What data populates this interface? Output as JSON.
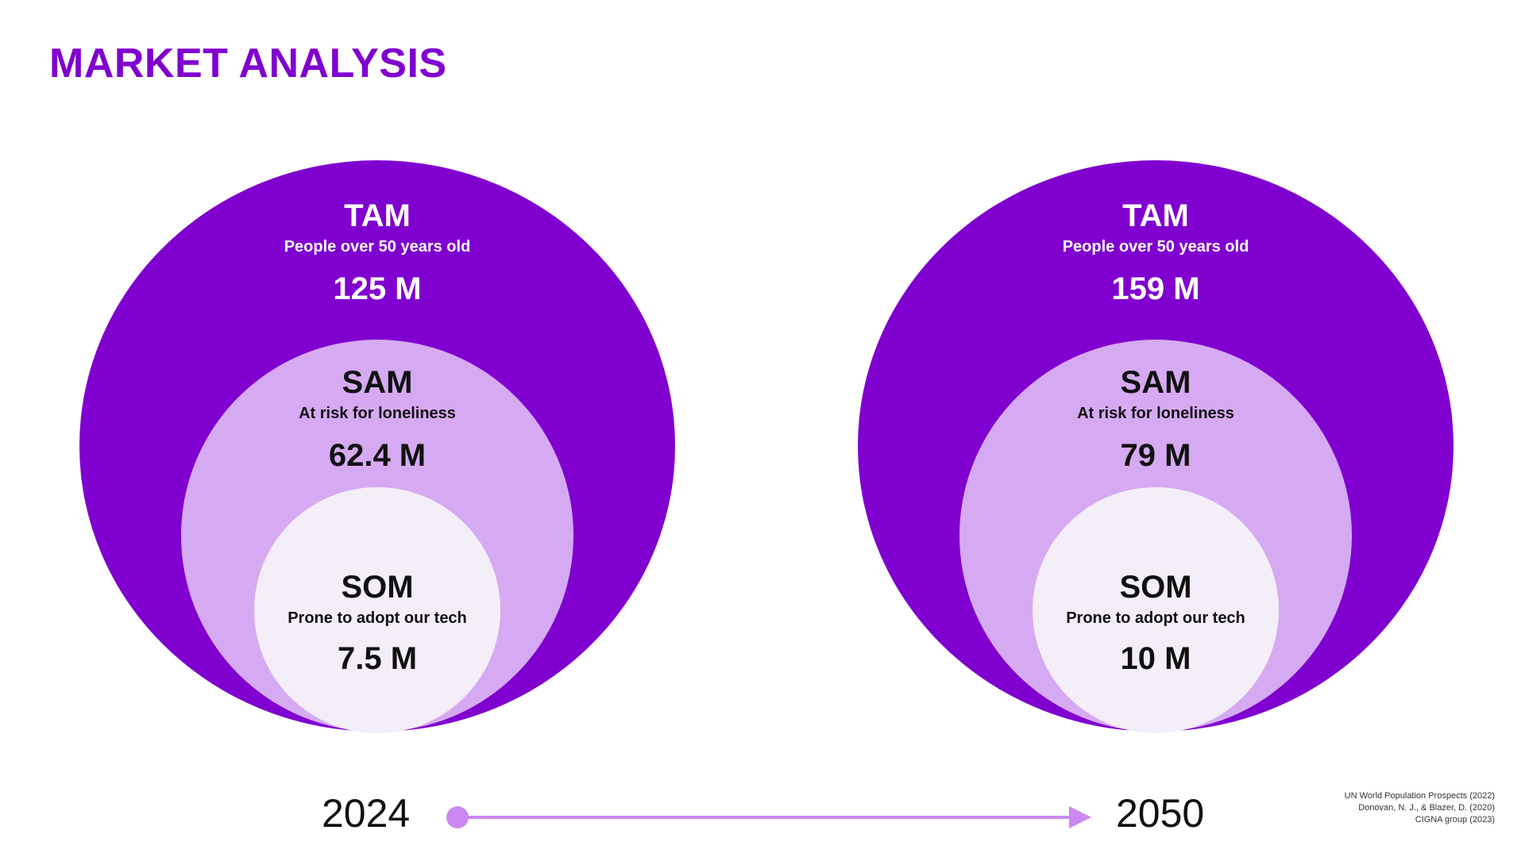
{
  "title": "MARKET ANALYSIS",
  "colors": {
    "tam": "#8000d0",
    "sam": "#d6aaf2",
    "som": "#f4eef8",
    "timeline": "#cc88f2"
  },
  "diagrams": [
    {
      "tam": {
        "heading": "TAM",
        "description": "People over 50 years old",
        "value": "125 M"
      },
      "sam": {
        "heading": "SAM",
        "description": "At risk for loneliness",
        "value": "62.4 M"
      },
      "som": {
        "heading": "SOM",
        "description": "Prone to adopt our tech",
        "value": "7.5 M"
      }
    },
    {
      "tam": {
        "heading": "TAM",
        "description": "People over 50 years old",
        "value": "159 M"
      },
      "sam": {
        "heading": "SAM",
        "description": "At risk for loneliness",
        "value": "79 M"
      },
      "som": {
        "heading": "SOM",
        "description": "Prone to adopt our tech",
        "value": "10 M"
      }
    }
  ],
  "timeline": {
    "start": "2024",
    "end": "2050"
  },
  "sources": [
    "UN World Population Prospects (2022)",
    "Donovan, N. J., & Blazer, D. (2020)",
    "CIGNA group (2023)"
  ]
}
